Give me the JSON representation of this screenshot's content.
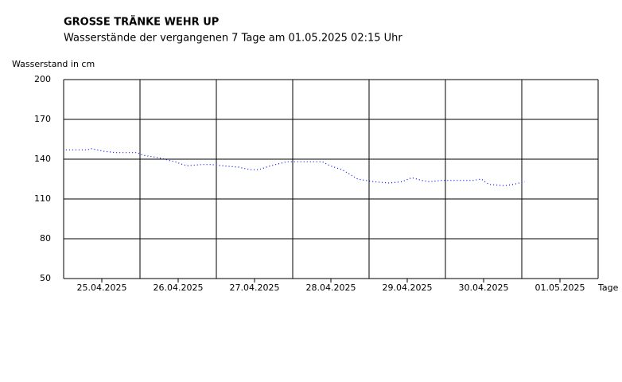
{
  "chart_data": {
    "type": "line",
    "title": "GROSSE TRÄNKE WEHR UP",
    "subtitle": "Wasserstände der vergangenen 7 Tage am 01.05.2025 02:15 Uhr",
    "y_label": "Wasserstand in cm",
    "x_label": "Tage",
    "xlim": [
      0,
      7
    ],
    "xticks": [
      {
        "value": 0.5,
        "label": "25.04.2025"
      },
      {
        "value": 1.5,
        "label": "26.04.2025"
      },
      {
        "value": 2.5,
        "label": "27.04.2025"
      },
      {
        "value": 3.5,
        "label": "28.04.2025"
      },
      {
        "value": 4.5,
        "label": "29.04.2025"
      },
      {
        "value": 5.5,
        "label": "30.04.2025"
      },
      {
        "value": 6.5,
        "label": "01.05.2025"
      }
    ],
    "xgrid": [
      0,
      1,
      2,
      3,
      4,
      5,
      6,
      7
    ],
    "ylim": [
      50,
      200
    ],
    "yticks": [
      50,
      80,
      110,
      140,
      170,
      200
    ],
    "grid": true,
    "x": [
      0.03,
      0.31,
      0.36,
      0.52,
      0.68,
      0.96,
      1.04,
      1.25,
      1.46,
      1.61,
      1.82,
      1.93,
      2.08,
      2.29,
      2.45,
      2.55,
      2.71,
      2.92,
      3.13,
      3.39,
      3.49,
      3.65,
      3.85,
      4.06,
      4.27,
      4.43,
      4.56,
      4.69,
      4.79,
      4.95,
      5.1,
      5.36,
      5.47,
      5.57,
      5.78,
      5.89,
      6.04
    ],
    "series": [
      {
        "name": "Wasserstand",
        "color": "#0000ff",
        "values": [
          147,
          147,
          148,
          146,
          145,
          145,
          143,
          141,
          138,
          135,
          136,
          136,
          135,
          134,
          132,
          132,
          135,
          138,
          138,
          138,
          135,
          132,
          125,
          123,
          122,
          123,
          126,
          124,
          123,
          124,
          124,
          124,
          125,
          121,
          120,
          121,
          123
        ]
      }
    ]
  }
}
